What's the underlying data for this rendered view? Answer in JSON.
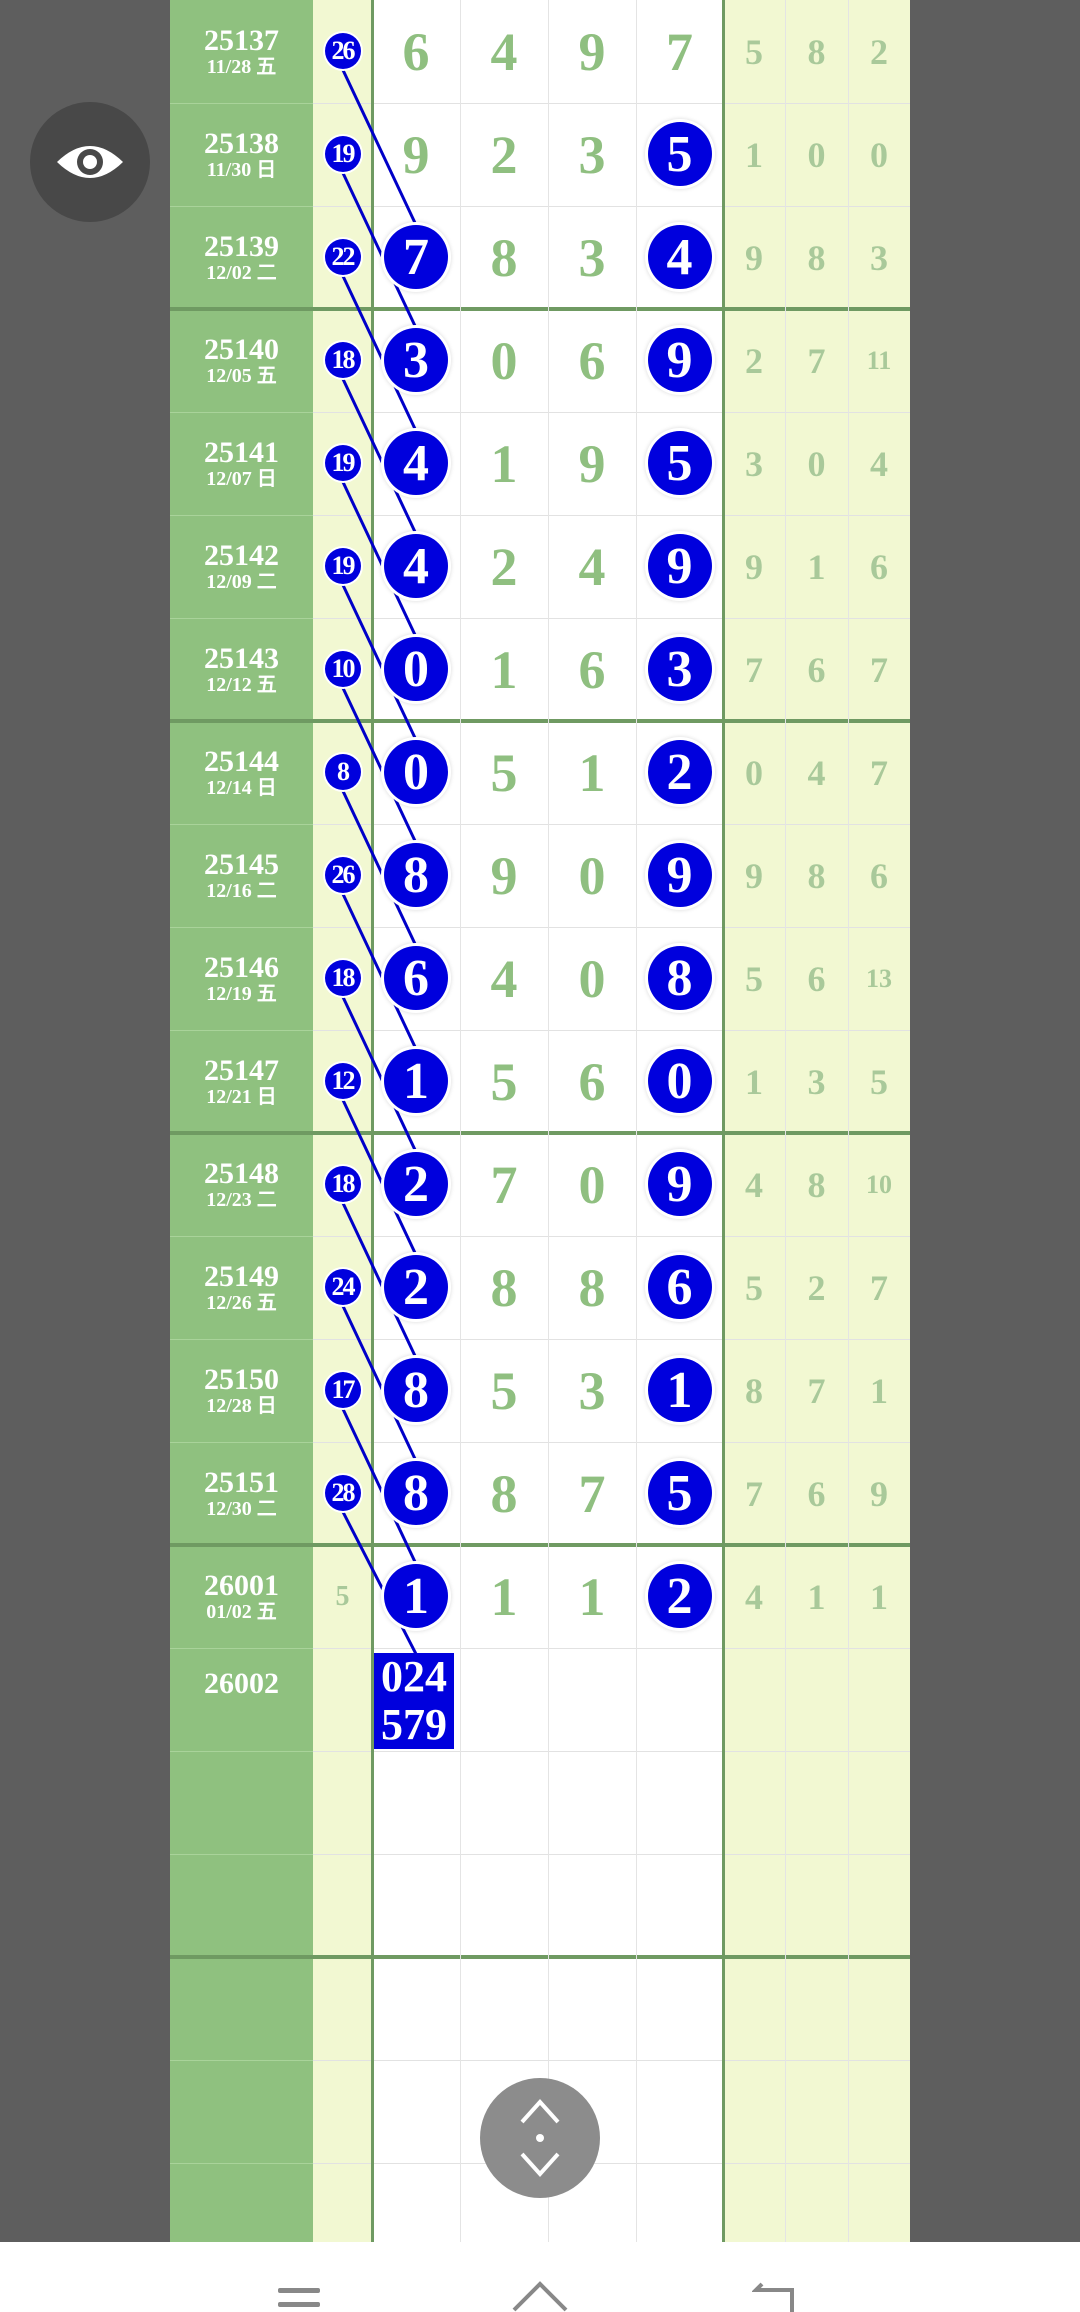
{
  "colors": {
    "ball": "#0000dd",
    "period_bg": "#8fc17f",
    "light_bg": "#f2f8d2",
    "digit": "#8fbf80",
    "grid_thick": "#6f9a62",
    "background": "#5e5e5e"
  },
  "rows": [
    {
      "period": "25137",
      "date": "11/28 五",
      "sum": "26",
      "digits": [
        "6",
        "4",
        "9",
        "7"
      ],
      "circled": [],
      "tail": [
        "5",
        "8",
        "2"
      ]
    },
    {
      "period": "25138",
      "date": "11/30 日",
      "sum": "19",
      "digits": [
        "9",
        "2",
        "3",
        "5"
      ],
      "circled": [
        3
      ],
      "tail": [
        "1",
        "0",
        "0"
      ]
    },
    {
      "period": "25139",
      "date": "12/02 二",
      "sum": "22",
      "digits": [
        "7",
        "8",
        "3",
        "4"
      ],
      "circled": [
        0,
        3
      ],
      "tail": [
        "9",
        "8",
        "3"
      ]
    },
    {
      "period": "25140",
      "date": "12/05 五",
      "sum": "18",
      "digits": [
        "3",
        "0",
        "6",
        "9"
      ],
      "circled": [
        0,
        3
      ],
      "tail": [
        "2",
        "7",
        "11"
      ]
    },
    {
      "period": "25141",
      "date": "12/07 日",
      "sum": "19",
      "digits": [
        "4",
        "1",
        "9",
        "5"
      ],
      "circled": [
        0,
        3
      ],
      "tail": [
        "3",
        "0",
        "4"
      ]
    },
    {
      "period": "25142",
      "date": "12/09 二",
      "sum": "19",
      "digits": [
        "4",
        "2",
        "4",
        "9"
      ],
      "circled": [
        0,
        3
      ],
      "tail": [
        "9",
        "1",
        "6"
      ]
    },
    {
      "period": "25143",
      "date": "12/12 五",
      "sum": "10",
      "digits": [
        "0",
        "1",
        "6",
        "3"
      ],
      "circled": [
        0,
        3
      ],
      "tail": [
        "7",
        "6",
        "7"
      ]
    },
    {
      "period": "25144",
      "date": "12/14 日",
      "sum": "8",
      "digits": [
        "0",
        "5",
        "1",
        "2"
      ],
      "circled": [
        0,
        3
      ],
      "tail": [
        "0",
        "4",
        "7"
      ]
    },
    {
      "period": "25145",
      "date": "12/16 二",
      "sum": "26",
      "digits": [
        "8",
        "9",
        "0",
        "9"
      ],
      "circled": [
        0,
        3
      ],
      "tail": [
        "9",
        "8",
        "6"
      ]
    },
    {
      "period": "25146",
      "date": "12/19 五",
      "sum": "18",
      "digits": [
        "6",
        "4",
        "0",
        "8"
      ],
      "circled": [
        0,
        3
      ],
      "tail": [
        "5",
        "6",
        "13"
      ]
    },
    {
      "period": "25147",
      "date": "12/21 日",
      "sum": "12",
      "digits": [
        "1",
        "5",
        "6",
        "0"
      ],
      "circled": [
        0,
        3
      ],
      "tail": [
        "1",
        "3",
        "5"
      ]
    },
    {
      "period": "25148",
      "date": "12/23 二",
      "sum": "18",
      "digits": [
        "2",
        "7",
        "0",
        "9"
      ],
      "circled": [
        0,
        3
      ],
      "tail": [
        "4",
        "8",
        "10"
      ]
    },
    {
      "period": "25149",
      "date": "12/26 五",
      "sum": "24",
      "digits": [
        "2",
        "8",
        "8",
        "6"
      ],
      "circled": [
        0,
        3
      ],
      "tail": [
        "5",
        "2",
        "7"
      ]
    },
    {
      "period": "25150",
      "date": "12/28 日",
      "sum": "17",
      "digits": [
        "8",
        "5",
        "3",
        "1"
      ],
      "circled": [
        0,
        3
      ],
      "tail": [
        "8",
        "7",
        "1"
      ]
    },
    {
      "period": "25151",
      "date": "12/30 二",
      "sum": "28",
      "digits": [
        "8",
        "8",
        "7",
        "5"
      ],
      "circled": [
        0,
        3
      ],
      "tail": [
        "7",
        "6",
        "9"
      ]
    },
    {
      "period": "26001",
      "date": "01/02 五",
      "sum": "5",
      "sum_plain": true,
      "digits": [
        "1",
        "1",
        "1",
        "2"
      ],
      "circled": [
        0,
        3
      ],
      "tail": [
        "4",
        "1",
        "1"
      ]
    }
  ],
  "next": {
    "period": "26002",
    "prediction_line1": "024",
    "prediction_line2": "579"
  },
  "icons": {
    "eye": "eye-icon",
    "scroll": "scroll-up-down-icon",
    "nav_menu": "menu-icon",
    "nav_home": "home-icon",
    "nav_back": "back-icon"
  }
}
